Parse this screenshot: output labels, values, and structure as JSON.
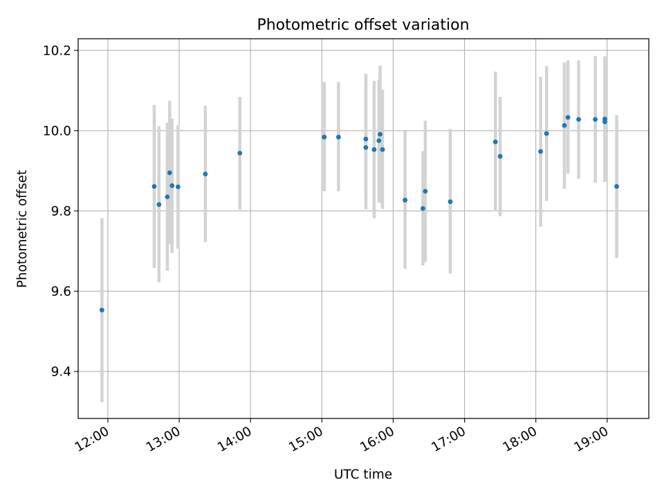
{
  "chart_data": {
    "type": "scatter",
    "title": "Photometric offset variation",
    "xlabel": "UTC time",
    "ylabel": "Photometric offset",
    "grid": true,
    "x_ticks": [
      "12:00",
      "13:00",
      "14:00",
      "15:00",
      "16:00",
      "17:00",
      "18:00",
      "19:00"
    ],
    "y_ticks": [
      "9.4",
      "9.6",
      "9.8",
      "10.0",
      "10.2"
    ],
    "xlim": [
      "11:35",
      "19:35"
    ],
    "ylim": [
      9.283,
      10.229
    ],
    "colors": {
      "point": "#1f77b4",
      "errorbar": "#d3d3d3",
      "grid": "#b0b0b0"
    },
    "points": [
      {
        "x": "11:55",
        "y": 9.553,
        "ymin": 9.324,
        "ymax": 9.782
      },
      {
        "x": "12:39",
        "y": 9.861,
        "ymin": 9.658,
        "ymax": 10.064
      },
      {
        "x": "12:43",
        "y": 9.816,
        "ymin": 9.622,
        "ymax": 10.011
      },
      {
        "x": "12:50",
        "y": 9.835,
        "ymin": 9.651,
        "ymax": 10.02
      },
      {
        "x": "12:52",
        "y": 9.895,
        "ymin": 9.717,
        "ymax": 10.074
      },
      {
        "x": "12:54",
        "y": 9.863,
        "ymin": 9.695,
        "ymax": 10.03
      },
      {
        "x": "12:59",
        "y": 9.86,
        "ymin": 9.706,
        "ymax": 10.014
      },
      {
        "x": "13:22",
        "y": 9.892,
        "ymin": 9.722,
        "ymax": 10.062
      },
      {
        "x": "13:51",
        "y": 9.944,
        "ymin": 9.803,
        "ymax": 10.084
      },
      {
        "x": "15:02",
        "y": 9.984,
        "ymin": 9.849,
        "ymax": 10.121
      },
      {
        "x": "15:14",
        "y": 9.984,
        "ymin": 9.849,
        "ymax": 10.121
      },
      {
        "x": "15:37",
        "y": 9.979,
        "ymin": 9.843,
        "ymax": 10.142
      },
      {
        "x": "15:37",
        "y": 9.958,
        "ymin": 9.804,
        "ymax": 10.113
      },
      {
        "x": "15:44",
        "y": 9.953,
        "ymin": 9.782,
        "ymax": 10.124
      },
      {
        "x": "15:48",
        "y": 9.975,
        "ymin": 9.822,
        "ymax": 10.127
      },
      {
        "x": "15:49",
        "y": 9.991,
        "ymin": 9.82,
        "ymax": 10.162
      },
      {
        "x": "15:51",
        "y": 9.953,
        "ymin": 9.805,
        "ymax": 10.102
      },
      {
        "x": "16:10",
        "y": 9.827,
        "ymin": 9.656,
        "ymax": 9.999
      },
      {
        "x": "16:25",
        "y": 9.806,
        "ymin": 9.664,
        "ymax": 9.949
      },
      {
        "x": "16:27",
        "y": 9.849,
        "ymin": 9.673,
        "ymax": 10.025
      },
      {
        "x": "16:48",
        "y": 9.823,
        "ymin": 9.644,
        "ymax": 10.004
      },
      {
        "x": "17:26",
        "y": 9.972,
        "ymin": 9.799,
        "ymax": 10.147
      },
      {
        "x": "17:30",
        "y": 9.936,
        "ymin": 9.787,
        "ymax": 10.084
      },
      {
        "x": "18:04",
        "y": 9.948,
        "ymin": 9.761,
        "ymax": 10.134
      },
      {
        "x": "18:09",
        "y": 9.993,
        "ymin": 9.825,
        "ymax": 10.161
      },
      {
        "x": "18:24",
        "y": 10.013,
        "ymin": 9.855,
        "ymax": 10.17
      },
      {
        "x": "18:27",
        "y": 10.033,
        "ymin": 9.893,
        "ymax": 10.175
      },
      {
        "x": "18:36",
        "y": 10.028,
        "ymin": 9.88,
        "ymax": 10.175
      },
      {
        "x": "18:50",
        "y": 10.028,
        "ymin": 9.87,
        "ymax": 10.186
      },
      {
        "x": "18:58",
        "y": 10.029,
        "ymin": 9.872,
        "ymax": 10.185
      },
      {
        "x": "18:58",
        "y": 10.022,
        "ymin": 9.874,
        "ymax": 10.17
      },
      {
        "x": "19:08",
        "y": 9.861,
        "ymin": 9.683,
        "ymax": 10.039
      }
    ]
  }
}
